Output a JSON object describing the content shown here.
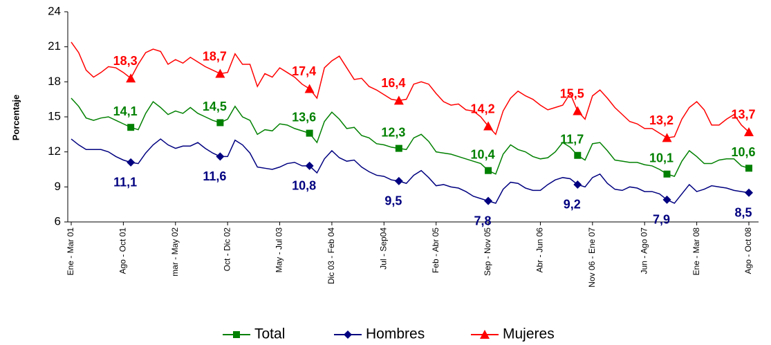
{
  "chart_data": {
    "type": "line",
    "y_label": "Porcentaje",
    "categories": [
      "Ene - Mar 01",
      null,
      null,
      null,
      null,
      null,
      null,
      "Ago - Oct 01",
      null,
      null,
      null,
      null,
      null,
      null,
      "mar - May 02",
      null,
      null,
      null,
      null,
      null,
      null,
      "Oct - Dic 02",
      null,
      null,
      null,
      null,
      null,
      null,
      "May - Jul 03",
      null,
      null,
      null,
      null,
      null,
      null,
      "Dic 03 - Feb 04",
      null,
      null,
      null,
      null,
      null,
      null,
      "Jul - Sep04",
      null,
      null,
      null,
      null,
      null,
      null,
      "Feb - Abr 05",
      null,
      null,
      null,
      null,
      null,
      null,
      "Sep - Nov 05",
      null,
      null,
      null,
      null,
      null,
      null,
      "Abr - Jun 06",
      null,
      null,
      null,
      null,
      null,
      null,
      "Nov 06 - Ene 07",
      null,
      null,
      null,
      null,
      null,
      null,
      "Jun - Ago 07",
      null,
      null,
      null,
      null,
      null,
      null,
      "Ene - Mar 08",
      null,
      null,
      null,
      null,
      null,
      null,
      "Ago - Oct 08"
    ],
    "ylim": [
      6,
      24
    ],
    "yticks": [
      6,
      9,
      12,
      15,
      18,
      21,
      24
    ],
    "grid": false,
    "legend": "bottom",
    "series": [
      {
        "name": "Total",
        "color": "#008000",
        "marker": "square",
        "values": [
          16.6,
          15.9,
          14.9,
          14.7,
          14.9,
          15.0,
          14.7,
          14.4,
          14.1,
          13.9,
          15.3,
          16.3,
          15.8,
          15.2,
          15.5,
          15.3,
          15.8,
          15.3,
          15.0,
          14.7,
          14.5,
          14.8,
          15.9,
          15.0,
          14.7,
          13.5,
          13.9,
          13.8,
          14.4,
          14.3,
          14.0,
          13.8,
          13.6,
          12.8,
          14.6,
          15.4,
          14.8,
          14.0,
          14.1,
          13.4,
          13.2,
          12.7,
          12.6,
          12.4,
          12.3,
          12.2,
          13.2,
          13.5,
          12.9,
          12.0,
          11.9,
          11.8,
          11.6,
          11.4,
          11.2,
          11.0,
          10.4,
          10.1,
          11.8,
          12.6,
          12.2,
          12.0,
          11.6,
          11.4,
          11.5,
          12.0,
          12.8,
          12.4,
          11.7,
          11.3,
          12.7,
          12.8,
          12.1,
          11.3,
          11.2,
          11.1,
          11.1,
          10.9,
          10.8,
          10.5,
          10.1,
          9.9,
          11.2,
          12.1,
          11.6,
          11.0,
          11.0,
          11.3,
          11.4,
          11.4,
          10.8,
          10.6
        ],
        "value_labels": [
          null,
          null,
          null,
          null,
          null,
          null,
          null,
          null,
          "14,1",
          null,
          null,
          null,
          null,
          null,
          null,
          null,
          null,
          null,
          null,
          null,
          "14,5",
          null,
          null,
          null,
          null,
          null,
          null,
          null,
          null,
          null,
          null,
          null,
          "13,6",
          null,
          null,
          null,
          null,
          null,
          null,
          null,
          null,
          null,
          null,
          null,
          "12,3",
          null,
          null,
          null,
          null,
          null,
          null,
          null,
          null,
          null,
          null,
          null,
          "10,4",
          null,
          null,
          null,
          null,
          null,
          null,
          null,
          null,
          null,
          null,
          null,
          "11,7",
          null,
          null,
          null,
          null,
          null,
          null,
          null,
          null,
          null,
          null,
          null,
          "10,1",
          null,
          null,
          null,
          null,
          null,
          null,
          null,
          null,
          null,
          null,
          "10,6"
        ]
      },
      {
        "name": "Hombres",
        "color": "#000080",
        "marker": "diamond",
        "values": [
          13.1,
          12.6,
          12.2,
          12.2,
          12.2,
          12.0,
          11.6,
          11.3,
          11.1,
          11.0,
          11.9,
          12.6,
          13.1,
          12.6,
          12.3,
          12.5,
          12.5,
          12.8,
          12.3,
          11.9,
          11.6,
          11.6,
          13.0,
          12.6,
          11.9,
          10.7,
          10.6,
          10.5,
          10.7,
          11.0,
          11.1,
          10.8,
          10.8,
          10.2,
          11.4,
          12.1,
          11.5,
          11.2,
          11.3,
          10.7,
          10.3,
          10.0,
          9.9,
          9.6,
          9.5,
          9.3,
          10.0,
          10.4,
          9.8,
          9.1,
          9.2,
          9.0,
          8.9,
          8.6,
          8.2,
          8.0,
          7.8,
          7.6,
          8.8,
          9.4,
          9.3,
          8.9,
          8.7,
          8.7,
          9.2,
          9.6,
          9.8,
          9.7,
          9.2,
          9.0,
          9.8,
          10.1,
          9.3,
          8.8,
          8.7,
          9.0,
          8.9,
          8.6,
          8.6,
          8.4,
          7.9,
          7.6,
          8.4,
          9.2,
          8.6,
          8.8,
          9.1,
          9.0,
          8.9,
          8.7,
          8.6,
          8.5
        ],
        "value_labels": [
          null,
          null,
          null,
          null,
          null,
          null,
          null,
          null,
          "11,1",
          null,
          null,
          null,
          null,
          null,
          null,
          null,
          null,
          null,
          null,
          null,
          "11,6",
          null,
          null,
          null,
          null,
          null,
          null,
          null,
          null,
          null,
          null,
          null,
          "10,8",
          null,
          null,
          null,
          null,
          null,
          null,
          null,
          null,
          null,
          null,
          null,
          "9,5",
          null,
          null,
          null,
          null,
          null,
          null,
          null,
          null,
          null,
          null,
          null,
          "7,8",
          null,
          null,
          null,
          null,
          null,
          null,
          null,
          null,
          null,
          null,
          null,
          "9,2",
          null,
          null,
          null,
          null,
          null,
          null,
          null,
          null,
          null,
          null,
          null,
          "7,9",
          null,
          null,
          null,
          null,
          null,
          null,
          null,
          null,
          null,
          null,
          "8,5"
        ]
      },
      {
        "name": "Mujeres",
        "color": "#ff0000",
        "marker": "triangle",
        "values": [
          21.4,
          20.5,
          19.0,
          18.4,
          18.8,
          19.3,
          19.2,
          18.8,
          18.3,
          19.5,
          20.5,
          20.8,
          20.6,
          19.5,
          19.9,
          19.6,
          20.1,
          19.7,
          19.3,
          19.0,
          18.7,
          18.8,
          20.4,
          19.5,
          19.5,
          17.6,
          18.7,
          18.4,
          19.2,
          18.8,
          18.4,
          17.8,
          17.4,
          16.6,
          19.2,
          19.8,
          20.2,
          19.2,
          18.2,
          18.3,
          17.6,
          17.3,
          16.9,
          16.5,
          16.4,
          16.5,
          17.8,
          18.0,
          17.8,
          17.0,
          16.3,
          16.0,
          16.1,
          15.6,
          15.5,
          15.0,
          14.2,
          13.5,
          15.5,
          16.6,
          17.2,
          16.8,
          16.5,
          16.0,
          15.6,
          15.8,
          16.0,
          17.0,
          15.5,
          14.8,
          16.8,
          17.3,
          16.6,
          15.8,
          15.2,
          14.6,
          14.4,
          14.0,
          14.0,
          13.6,
          13.2,
          13.3,
          14.8,
          15.8,
          16.3,
          15.6,
          14.3,
          14.3,
          14.8,
          15.2,
          14.3,
          13.7
        ],
        "value_labels": [
          null,
          null,
          null,
          null,
          null,
          null,
          null,
          null,
          "18,3",
          null,
          null,
          null,
          null,
          null,
          null,
          null,
          null,
          null,
          null,
          null,
          "18,7",
          null,
          null,
          null,
          null,
          null,
          null,
          null,
          null,
          null,
          null,
          null,
          "17,4",
          null,
          null,
          null,
          null,
          null,
          null,
          null,
          null,
          null,
          null,
          null,
          "16,4",
          null,
          null,
          null,
          null,
          null,
          null,
          null,
          null,
          null,
          null,
          null,
          "14,2",
          null,
          null,
          null,
          null,
          null,
          null,
          null,
          null,
          null,
          null,
          null,
          "15,5",
          null,
          null,
          null,
          null,
          null,
          null,
          null,
          null,
          null,
          null,
          null,
          "13,2",
          null,
          null,
          null,
          null,
          null,
          null,
          null,
          null,
          null,
          null,
          "13,7"
        ]
      }
    ]
  }
}
